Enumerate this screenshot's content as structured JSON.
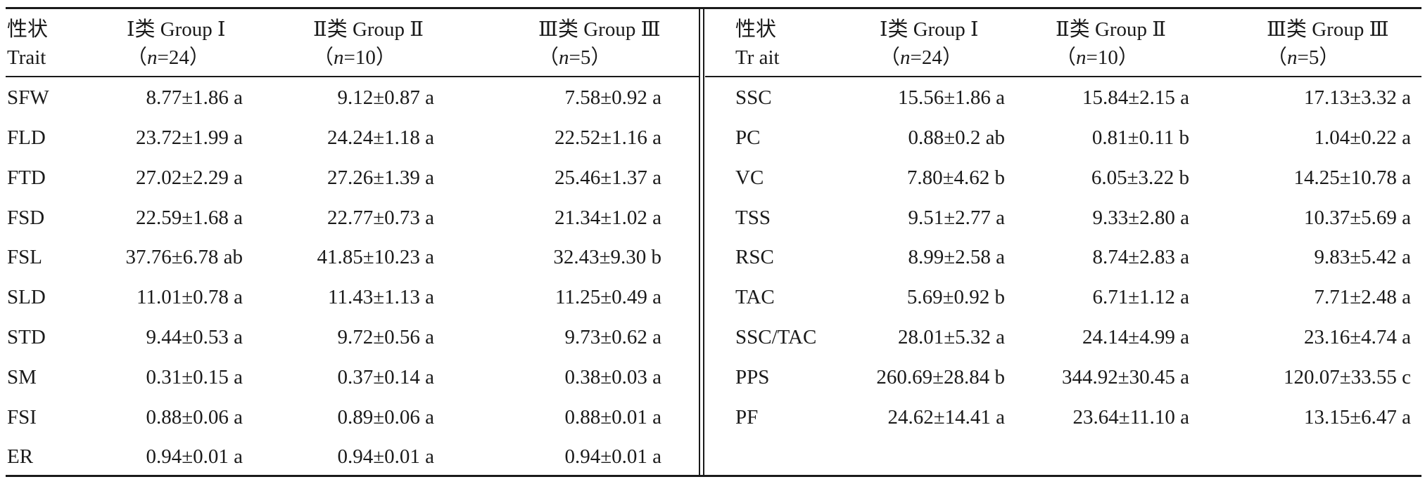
{
  "left": {
    "headers": [
      {
        "line1": "性状",
        "line2": "Trait"
      },
      {
        "line1": "Ⅰ类 Group Ⅰ",
        "open": "（",
        "n": "n",
        "eq": "=24）"
      },
      {
        "line1": "Ⅱ类 Group Ⅱ",
        "open": "（",
        "n": "n",
        "eq": "=10）"
      },
      {
        "line1": "Ⅲ类 Group Ⅲ",
        "open": "（",
        "n": "n",
        "eq": "=5）"
      }
    ],
    "rows": [
      [
        "SFW",
        "8.77±1.86 a",
        "9.12±0.87 a",
        "7.58±0.92 a"
      ],
      [
        "FLD",
        "23.72±1.99 a",
        "24.24±1.18 a",
        "22.52±1.16 a"
      ],
      [
        "FTD",
        "27.02±2.29 a",
        "27.26±1.39 a",
        "25.46±1.37 a"
      ],
      [
        "FSD",
        "22.59±1.68 a",
        "22.77±0.73 a",
        "21.34±1.02 a"
      ],
      [
        "FSL",
        "37.76±6.78 ab",
        "41.85±10.23 a",
        "32.43±9.30 b"
      ],
      [
        "SLD",
        "11.01±0.78 a",
        "11.43±1.13 a",
        "11.25±0.49 a"
      ],
      [
        "STD",
        "9.44±0.53 a",
        "9.72±0.56 a",
        "9.73±0.62 a"
      ],
      [
        "SM",
        "0.31±0.15 a",
        "0.37±0.14 a",
        "0.38±0.03 a"
      ],
      [
        "FSI",
        "0.88±0.06 a",
        "0.89±0.06 a",
        "0.88±0.01 a"
      ],
      [
        "ER",
        "0.94±0.01 a",
        "0.94±0.01 a",
        "0.94±0.01 a"
      ]
    ]
  },
  "right": {
    "headers": [
      {
        "line1": "性状",
        "line2": "Tr ait"
      },
      {
        "line1": "Ⅰ类 Group Ⅰ",
        "open": "（",
        "n": "n",
        "eq": "=24）"
      },
      {
        "line1": "Ⅱ类 Group Ⅱ",
        "open": "（",
        "n": "n",
        "eq": "=10）"
      },
      {
        "line1": "Ⅲ类 Group Ⅲ",
        "open": "（",
        "n": "n",
        "eq": "=5）"
      }
    ],
    "rows": [
      [
        "SSC",
        "15.56±1.86 a",
        "15.84±2.15 a",
        "17.13±3.32 a"
      ],
      [
        "PC",
        "0.88±0.2 ab",
        "0.81±0.11 b",
        "1.04±0.22 a"
      ],
      [
        "VC",
        "7.80±4.62 b",
        "6.05±3.22 b",
        "14.25±10.78 a"
      ],
      [
        "TSS",
        "9.51±2.77 a",
        "9.33±2.80 a",
        "10.37±5.69 a"
      ],
      [
        "RSC",
        "8.99±2.58 a",
        "8.74±2.83 a",
        "9.83±5.42 a"
      ],
      [
        "TAC",
        "5.69±0.92 b",
        "6.71±1.12 a",
        "7.71±2.48 a"
      ],
      [
        "SSC/TAC",
        "28.01±5.32 a",
        "24.14±4.99 a",
        "23.16±4.74 a"
      ],
      [
        "PPS",
        "260.69±28.84 b",
        "344.92±30.45 a",
        "120.07±33.55 c"
      ],
      [
        "PF",
        "24.62±14.41 a",
        "23.64±11.10 a",
        "13.15±6.47 a"
      ]
    ]
  }
}
